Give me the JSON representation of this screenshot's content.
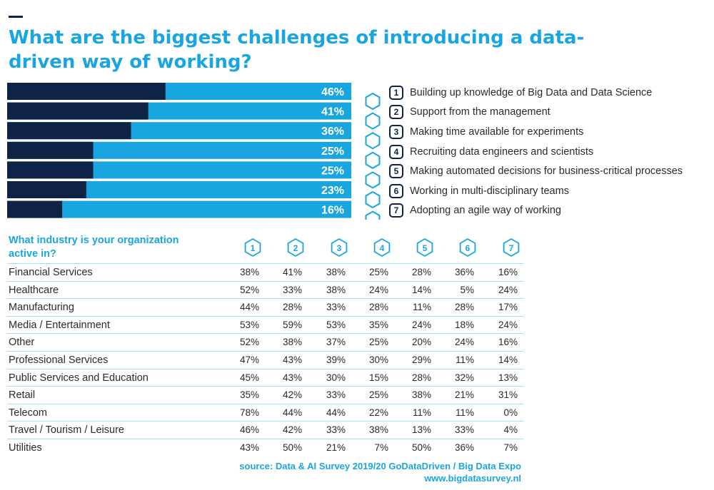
{
  "title": "What are the biggest challenges of introducing a data-driven way of working?",
  "colors": {
    "accent": "#19a6e0",
    "dark": "#0f2346",
    "row_line": "#a9dcf1"
  },
  "chart_data": [
    {
      "type": "bar",
      "orientation": "horizontal",
      "categories": [
        "1",
        "2",
        "3",
        "4",
        "5",
        "6",
        "7"
      ],
      "values": [
        46,
        41,
        36,
        25,
        25,
        23,
        16
      ],
      "value_labels": [
        "46%",
        "41%",
        "36%",
        "25%",
        "25%",
        "23%",
        "16%"
      ],
      "ylim": [
        0,
        100
      ]
    },
    {
      "type": "table",
      "title": "What industry is your organization active in?",
      "columns": [
        "1",
        "2",
        "3",
        "4",
        "5",
        "6",
        "7"
      ],
      "rows": [
        {
          "label": "Financial Services",
          "values": [
            "38%",
            "41%",
            "38%",
            "25%",
            "28%",
            "36%",
            "16%"
          ]
        },
        {
          "label": "Healthcare",
          "values": [
            "52%",
            "33%",
            "38%",
            "24%",
            "14%",
            "5%",
            "24%"
          ]
        },
        {
          "label": "Manufacturing",
          "values": [
            "44%",
            "28%",
            "33%",
            "28%",
            "11%",
            "28%",
            "17%"
          ]
        },
        {
          "label": "Media / Entertainment",
          "values": [
            "53%",
            "59%",
            "53%",
            "35%",
            "24%",
            "18%",
            "24%"
          ]
        },
        {
          "label": "Other",
          "values": [
            "52%",
            "38%",
            "37%",
            "25%",
            "20%",
            "24%",
            "16%"
          ]
        },
        {
          "label": "Professional Services",
          "values": [
            "47%",
            "43%",
            "39%",
            "30%",
            "29%",
            "11%",
            "14%"
          ]
        },
        {
          "label": "Public Services and Education",
          "values": [
            "45%",
            "43%",
            "30%",
            "15%",
            "28%",
            "32%",
            "13%"
          ]
        },
        {
          "label": "Retail",
          "values": [
            "35%",
            "42%",
            "33%",
            "25%",
            "38%",
            "21%",
            "31%"
          ]
        },
        {
          "label": "Telecom",
          "values": [
            "78%",
            "44%",
            "44%",
            "22%",
            "11%",
            "11%",
            "0%"
          ]
        },
        {
          "label": "Travel / Tourism / Leisure",
          "values": [
            "46%",
            "42%",
            "33%",
            "38%",
            "13%",
            "33%",
            "4%"
          ]
        },
        {
          "label": "Utilities",
          "values": [
            "43%",
            "50%",
            "21%",
            "7%",
            "50%",
            "36%",
            "7%"
          ]
        }
      ]
    }
  ],
  "legend": [
    {
      "num": "1",
      "text": "Building up knowledge of Big Data and Data Science"
    },
    {
      "num": "2",
      "text": "Support from the management"
    },
    {
      "num": "3",
      "text": "Making time available for experiments"
    },
    {
      "num": "4",
      "text": "Recruiting data engineers and scientists"
    },
    {
      "num": "5",
      "text": "Making automated decisions for business-critical processes"
    },
    {
      "num": "6",
      "text": "Working in multi-disciplinary teams"
    },
    {
      "num": "7",
      "text": "Adopting an agile way of working"
    }
  ],
  "source_line1": "source: Data & AI Survey 2019/20 GoDataDriven / Big Data Expo",
  "source_line2": "www.bigdatasurvey.nl"
}
